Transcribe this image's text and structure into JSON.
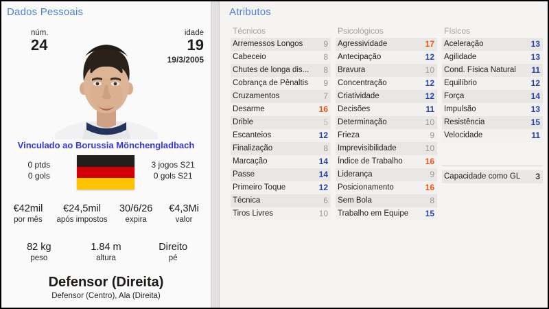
{
  "personal": {
    "title": "Dados Pessoais",
    "number_label": "núm.",
    "number": "24",
    "age_label": "idade",
    "age": "19",
    "birthdate": "19/3/2005",
    "loan_link": "Vinculado ao Borussia Mönchengladbach",
    "nationality": "germany-flag",
    "flag_colors": {
      "top": "#231f1c",
      "middle": "#d40009",
      "bottom": "#ffc400"
    },
    "season_stats": {
      "points": "0 ptds",
      "goals": "0 gols",
      "games_s21": "3 jogos S21",
      "goals_s21": "0 gols S21"
    },
    "finance": [
      {
        "value": "€42mil",
        "label": "por mês"
      },
      {
        "value": "€24,5mil",
        "label": "após impostos"
      },
      {
        "value": "30/6/26",
        "label": "expira"
      },
      {
        "value": "€4,3Mi",
        "label": "valor"
      }
    ],
    "physique": [
      {
        "value": "82 kg",
        "label": "peso"
      },
      {
        "value": "1.84 m",
        "label": "altura"
      },
      {
        "value": "Direito",
        "label": "pé"
      }
    ],
    "position_main": "Defensor (Direita)",
    "position_secondary": "Defensor (Centro), Ala (Direita)"
  },
  "attributes": {
    "title": "Atributos",
    "columns": [
      {
        "header": "Técnicos",
        "rows": [
          {
            "label": "Arremessos Longos",
            "value": 9,
            "tier": "normal"
          },
          {
            "label": "Cabeceio",
            "value": 8,
            "tier": "normal"
          },
          {
            "label": "Chutes de longa dis...",
            "value": 8,
            "tier": "normal"
          },
          {
            "label": "Cobrança de Pênaltis",
            "value": 9,
            "tier": "normal"
          },
          {
            "label": "Cruzamentos",
            "value": 7,
            "tier": "normal"
          },
          {
            "label": "Desarme",
            "value": 16,
            "tier": "top"
          },
          {
            "label": "Drible",
            "value": 5,
            "tier": "low"
          },
          {
            "label": "Escanteios",
            "value": 12,
            "tier": "good"
          },
          {
            "label": "Finalização",
            "value": 8,
            "tier": "normal"
          },
          {
            "label": "Marcação",
            "value": 14,
            "tier": "good"
          },
          {
            "label": "Passe",
            "value": 14,
            "tier": "good"
          },
          {
            "label": "Primeiro Toque",
            "value": 12,
            "tier": "good"
          },
          {
            "label": "Técnica",
            "value": 6,
            "tier": "normal"
          },
          {
            "label": "Tiros Livres",
            "value": 10,
            "tier": "normal"
          }
        ]
      },
      {
        "header": "Psicológicos",
        "rows": [
          {
            "label": "Agressividade",
            "value": 17,
            "tier": "top"
          },
          {
            "label": "Antecipação",
            "value": 12,
            "tier": "good"
          },
          {
            "label": "Bravura",
            "value": 10,
            "tier": "normal"
          },
          {
            "label": "Concentração",
            "value": 12,
            "tier": "good"
          },
          {
            "label": "Criatividade",
            "value": 12,
            "tier": "good"
          },
          {
            "label": "Decisões",
            "value": 11,
            "tier": "good"
          },
          {
            "label": "Determinação",
            "value": 10,
            "tier": "normal"
          },
          {
            "label": "Frieza",
            "value": 9,
            "tier": "normal"
          },
          {
            "label": "Imprevisibilidade",
            "value": 10,
            "tier": "normal"
          },
          {
            "label": "Índice de Trabalho",
            "value": 16,
            "tier": "top"
          },
          {
            "label": "Liderança",
            "value": 9,
            "tier": "normal"
          },
          {
            "label": "Posicionamento",
            "value": 16,
            "tier": "top"
          },
          {
            "label": "Sem Bola",
            "value": 8,
            "tier": "normal"
          },
          {
            "label": "Trabalho em Equipe",
            "value": 15,
            "tier": "good"
          }
        ]
      },
      {
        "header": "Físicos",
        "rows": [
          {
            "label": "Aceleração",
            "value": 13,
            "tier": "good"
          },
          {
            "label": "Agilidade",
            "value": 13,
            "tier": "good"
          },
          {
            "label": "Cond. Física Natural",
            "value": 11,
            "tier": "good"
          },
          {
            "label": "Equilíbrio",
            "value": 12,
            "tier": "good"
          },
          {
            "label": "Força",
            "value": 14,
            "tier": "good"
          },
          {
            "label": "Impulsão",
            "value": 13,
            "tier": "good"
          },
          {
            "label": "Resistência",
            "value": 15,
            "tier": "good"
          },
          {
            "label": "Velocidade",
            "value": 11,
            "tier": "good"
          }
        ]
      }
    ],
    "gk": {
      "label": "Capacidade como GL",
      "value": "3"
    }
  },
  "colors": {
    "panel_title": "#4b80d3",
    "link": "#3437df",
    "value_good": "#2544b2",
    "value_top": "#f2500c",
    "value_normal": "#9a9795",
    "value_low": "#bcbab7",
    "row_stripe": "#e9e7e4"
  }
}
